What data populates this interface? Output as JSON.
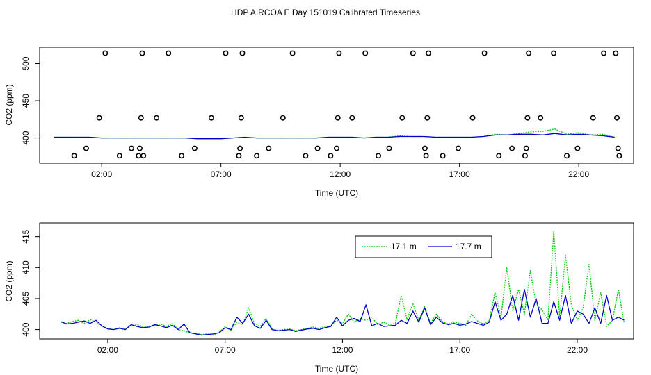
{
  "title": "HDP AIRCOA E  Day 151019  Calibrated Timeseries",
  "chart_data": [
    {
      "type": "scatter",
      "title": "",
      "xlabel": "Time (UTC)",
      "ylabel": "CO2 (ppm)",
      "x_ticks": [
        "02:00",
        "07:00",
        "12:00",
        "17:00",
        "22:00"
      ],
      "x_tick_hours": [
        2,
        7,
        12,
        17,
        22
      ],
      "y_ticks": [
        "400",
        "450",
        "500"
      ],
      "y_tick_values": [
        400,
        450,
        500
      ],
      "xlim_hours": [
        -0.6,
        24.3
      ],
      "ylim": [
        366,
        522
      ],
      "markers": {
        "x": [
          0.85,
          1.35,
          1.9,
          2.15,
          2.75,
          3.25,
          3.55,
          3.6,
          3.65,
          3.7,
          3.75,
          4.3,
          4.8,
          5.35,
          5.9,
          6.6,
          7.2,
          7.75,
          7.8,
          7.85,
          7.9,
          8.5,
          9.0,
          9.6,
          10.0,
          10.55,
          11.05,
          11.6,
          11.85,
          11.9,
          11.95,
          12.5,
          13.05,
          13.6,
          14.05,
          14.6,
          15.05,
          15.55,
          15.6,
          15.65,
          15.7,
          16.3,
          16.95,
          17.55,
          18.05,
          18.65,
          19.2,
          19.75,
          19.8,
          19.85,
          19.9,
          20.4,
          20.95,
          21.5,
          21.95,
          22.6,
          23.05,
          23.55,
          23.6,
          23.65,
          23.7
        ],
        "y": [
          376,
          386,
          427,
          514,
          376,
          386,
          376,
          386,
          427,
          514,
          376,
          427,
          514,
          376,
          386,
          427,
          514,
          376,
          386,
          427,
          514,
          376,
          386,
          427,
          514,
          376,
          386,
          376,
          386,
          427,
          514,
          427,
          514,
          376,
          386,
          427,
          514,
          386,
          376,
          427,
          514,
          376,
          386,
          427,
          514,
          376,
          386,
          376,
          386,
          427,
          514,
          427,
          514,
          376,
          386,
          427,
          514,
          514,
          427,
          386,
          376
        ]
      },
      "series": [
        {
          "name": "17.1 m",
          "color": "#00cc00",
          "x": [
            0,
            0.5,
            1,
            1.5,
            2,
            2.5,
            3,
            3.5,
            4,
            4.5,
            5,
            5.5,
            6,
            6.5,
            7,
            7.5,
            8,
            8.5,
            9,
            9.5,
            10,
            10.5,
            11,
            11.5,
            12,
            12.5,
            13,
            13.5,
            14,
            14.5,
            15,
            15.5,
            16,
            16.5,
            17,
            17.5,
            18,
            18.5,
            19,
            19.5,
            20,
            20.5,
            21,
            21.5,
            22,
            22.5,
            23,
            23.5
          ],
          "y": [
            401,
            401,
            401,
            401,
            400,
            400,
            400,
            400,
            400,
            400,
            400,
            400,
            399,
            399,
            399,
            400,
            401,
            400,
            400,
            400,
            400,
            400,
            400,
            401,
            401,
            401,
            400,
            401,
            401,
            403,
            402,
            402,
            401,
            401,
            401,
            401,
            402,
            405,
            404,
            406,
            408,
            409,
            412,
            405,
            407,
            404,
            405,
            401
          ]
        },
        {
          "name": "17.7 m",
          "color": "#0000cc",
          "x": [
            0,
            0.5,
            1,
            1.5,
            2,
            2.5,
            3,
            3.5,
            4,
            4.5,
            5,
            5.5,
            6,
            6.5,
            7,
            7.5,
            8,
            8.5,
            9,
            9.5,
            10,
            10.5,
            11,
            11.5,
            12,
            12.5,
            13,
            13.5,
            14,
            14.5,
            15,
            15.5,
            16,
            16.5,
            17,
            17.5,
            18,
            18.5,
            19,
            19.5,
            20,
            20.5,
            21,
            21.5,
            22,
            22.5,
            23,
            23.5
          ],
          "y": [
            401,
            401,
            401,
            401,
            400,
            400,
            400,
            400,
            400,
            400,
            400,
            400,
            399,
            399,
            399,
            400,
            401,
            400,
            400,
            400,
            400,
            400,
            400,
            401,
            401,
            401,
            400,
            401,
            401,
            402,
            402,
            402,
            401,
            401,
            401,
            401,
            402,
            404,
            404,
            405,
            405,
            404,
            406,
            404,
            405,
            404,
            403,
            401
          ]
        }
      ]
    },
    {
      "type": "line",
      "title": "",
      "xlabel": "Time (UTC)",
      "ylabel": "CO2 (ppm)",
      "x_ticks": [
        "02:00",
        "07:00",
        "12:00",
        "17:00",
        "22:00"
      ],
      "x_tick_hours": [
        2,
        7,
        12,
        17,
        22
      ],
      "y_ticks": [
        "400",
        "405",
        "410",
        "415"
      ],
      "y_tick_values": [
        400,
        405,
        410,
        415
      ],
      "xlim_hours": [
        -0.9,
        24.4
      ],
      "ylim": [
        398.5,
        417.2
      ],
      "legend": {
        "position": "top-center",
        "entries": [
          "17.1 m",
          "17.7 m"
        ]
      },
      "series": [
        {
          "name": "17.1 m",
          "color": "#00cc00",
          "x": [
            0,
            0.25,
            0.5,
            0.75,
            1,
            1.25,
            1.5,
            1.75,
            2,
            2.25,
            2.5,
            2.75,
            3,
            3.25,
            3.5,
            3.75,
            4,
            4.25,
            4.5,
            4.75,
            5,
            5.25,
            5.5,
            5.75,
            6,
            6.25,
            6.5,
            6.75,
            7,
            7.25,
            7.5,
            7.75,
            8,
            8.25,
            8.5,
            8.75,
            9,
            9.25,
            9.5,
            9.75,
            10,
            10.25,
            10.5,
            10.75,
            11,
            11.25,
            11.5,
            11.75,
            12,
            12.25,
            12.5,
            12.75,
            13,
            13.25,
            13.5,
            13.75,
            14,
            14.25,
            14.5,
            14.75,
            15,
            15.25,
            15.5,
            15.75,
            16,
            16.25,
            16.5,
            16.75,
            17,
            17.25,
            17.5,
            17.75,
            18,
            18.25,
            18.5,
            18.75,
            19,
            19.25,
            19.5,
            19.75,
            20,
            20.25,
            20.5,
            20.75,
            21,
            21.25,
            21.5,
            21.75,
            22,
            22.25,
            22.5,
            22.75,
            23,
            23.25,
            23.5,
            23.75,
            24
          ],
          "y": [
            401.2,
            401.0,
            401.3,
            401.5,
            401.0,
            401.6,
            401.2,
            400.5,
            400.2,
            400.0,
            400.3,
            400.1,
            400.6,
            400.8,
            400.5,
            400.4,
            400.7,
            400.9,
            400.5,
            401.0,
            400.0,
            399.8,
            399.5,
            399.4,
            399.2,
            399.3,
            399.1,
            399.6,
            400.5,
            399.9,
            401.2,
            400.8,
            403.5,
            401.0,
            400.5,
            401.8,
            400.1,
            399.9,
            400.0,
            400.1,
            399.8,
            400.0,
            400.2,
            400.4,
            400.2,
            400.5,
            400.6,
            401.5,
            401.0,
            402.5,
            401.2,
            401.8,
            401.5,
            402.0,
            400.8,
            401.2,
            400.8,
            401.0,
            405.5,
            401.6,
            404.2,
            401.5,
            403.7,
            401.0,
            402.5,
            401.3,
            400.9,
            401.2,
            401.0,
            400.7,
            402.5,
            401.4,
            400.9,
            401.5,
            406.0,
            402.0,
            410.0,
            403.0,
            406.5,
            402.5,
            409.5,
            404.0,
            403.2,
            401.5,
            415.8,
            402.0,
            412.0,
            404.0,
            401.5,
            403.5,
            410.5,
            401.5,
            406.0,
            400.5,
            401.5,
            406.5,
            401.0
          ]
        },
        {
          "name": "17.7 m",
          "color": "#0000cc",
          "x": [
            0,
            0.25,
            0.5,
            0.75,
            1,
            1.25,
            1.5,
            1.75,
            2,
            2.25,
            2.5,
            2.75,
            3,
            3.25,
            3.5,
            3.75,
            4,
            4.25,
            4.5,
            4.75,
            5,
            5.25,
            5.5,
            5.75,
            6,
            6.25,
            6.5,
            6.75,
            7,
            7.25,
            7.5,
            7.75,
            8,
            8.25,
            8.5,
            8.75,
            9,
            9.25,
            9.5,
            9.75,
            10,
            10.25,
            10.5,
            10.75,
            11,
            11.25,
            11.5,
            11.75,
            12,
            12.25,
            12.5,
            12.75,
            13,
            13.25,
            13.5,
            13.75,
            14,
            14.25,
            14.5,
            14.75,
            15,
            15.25,
            15.5,
            15.75,
            16,
            16.25,
            16.5,
            16.75,
            17,
            17.25,
            17.5,
            17.75,
            18,
            18.25,
            18.5,
            18.75,
            19,
            19.25,
            19.5,
            19.75,
            20,
            20.25,
            20.5,
            20.75,
            21,
            21.25,
            21.5,
            21.75,
            22,
            22.25,
            22.5,
            22.75,
            23,
            23.25,
            23.5,
            23.75,
            24
          ],
          "y": [
            401.3,
            400.9,
            401.0,
            401.2,
            401.4,
            401.0,
            401.5,
            400.6,
            400.1,
            400.0,
            400.2,
            400.0,
            400.8,
            400.5,
            400.3,
            400.4,
            400.8,
            400.6,
            400.3,
            400.7,
            400.0,
            400.9,
            399.5,
            399.3,
            399.1,
            399.2,
            399.3,
            399.5,
            400.3,
            400.0,
            402.0,
            401.0,
            402.5,
            400.6,
            400.2,
            401.5,
            400.0,
            399.8,
            399.9,
            400.0,
            399.7,
            399.9,
            400.1,
            400.2,
            400.0,
            400.3,
            400.5,
            402.0,
            400.6,
            401.5,
            401.8,
            401.3,
            404.0,
            400.6,
            401.0,
            400.5,
            400.6,
            400.7,
            401.5,
            401.0,
            403.0,
            401.2,
            403.5,
            400.8,
            402.0,
            401.1,
            400.8,
            401.0,
            400.7,
            400.9,
            401.3,
            401.0,
            400.7,
            401.2,
            404.5,
            401.5,
            402.5,
            405.5,
            401.5,
            406.5,
            402.0,
            405.0,
            401.0,
            401.0,
            404.5,
            401.5,
            405.5,
            401.0,
            403.0,
            402.5,
            401.0,
            403.5,
            401.0,
            405.5,
            401.5,
            402.0,
            401.5
          ]
        }
      ]
    }
  ]
}
